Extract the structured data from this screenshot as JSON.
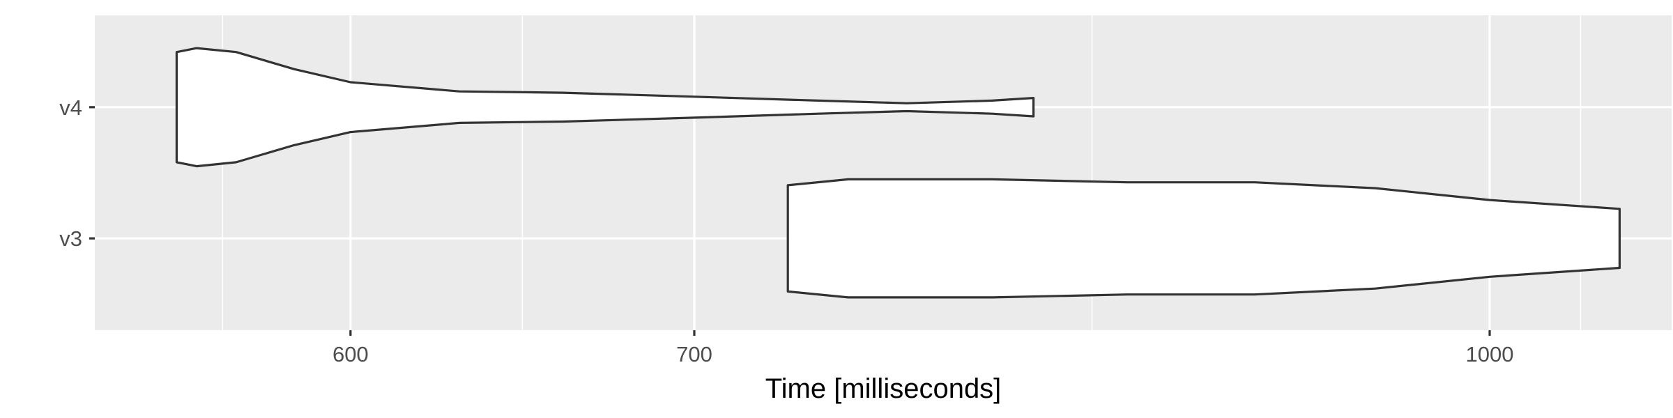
{
  "chart_data": {
    "type": "violin",
    "orientation": "horizontal",
    "xlabel": "Time [milliseconds]",
    "ylabel": "",
    "x_scale": "log",
    "xlim": [
      535,
      1085
    ],
    "x_ticks": [
      600,
      700,
      1000
    ],
    "categories": [
      "v3",
      "v4"
    ],
    "grid": true,
    "colors": {
      "panel": "#EBEBEB",
      "grid": "#FFFFFF",
      "outline": "#333333",
      "fill": "#FFFFFF"
    },
    "series": [
      {
        "category": "v4",
        "min": 555,
        "max": 815,
        "density": [
          [
            555,
            0.42
          ],
          [
            560,
            0.45
          ],
          [
            570,
            0.42
          ],
          [
            585,
            0.29
          ],
          [
            600,
            0.19
          ],
          [
            630,
            0.12
          ],
          [
            660,
            0.11
          ],
          [
            700,
            0.08
          ],
          [
            740,
            0.05
          ],
          [
            770,
            0.03
          ],
          [
            800,
            0.05
          ],
          [
            815,
            0.07
          ]
        ]
      },
      {
        "category": "v3",
        "min": 730,
        "max": 1060,
        "density": [
          [
            730,
            0.18
          ],
          [
            750,
            0.2
          ],
          [
            800,
            0.2
          ],
          [
            850,
            0.19
          ],
          [
            900,
            0.19
          ],
          [
            950,
            0.17
          ],
          [
            1000,
            0.13
          ],
          [
            1060,
            0.1
          ]
        ]
      }
    ]
  }
}
